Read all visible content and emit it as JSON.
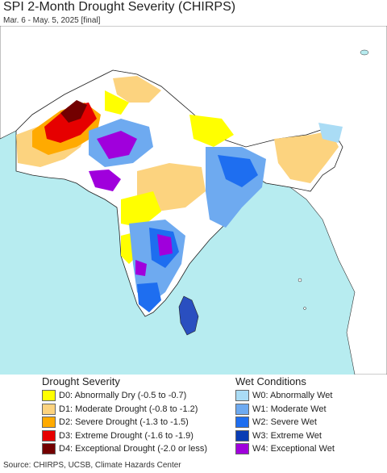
{
  "title": "SPI 2-Month Drought Severity (CHIRPS)",
  "subtitle": "Mar. 6 - May. 5, 2025 [final]",
  "drought_legend": {
    "heading": "Drought Severity",
    "items": [
      {
        "label": "D0: Abnormally Dry (-0.5 to -0.7)",
        "color": "#ffff00"
      },
      {
        "label": "D1: Moderate Drought (-0.8 to -1.2)",
        "color": "#fcd37f"
      },
      {
        "label": "D2: Severe Drought (-1.3 to -1.5)",
        "color": "#ffaa00"
      },
      {
        "label": "D3: Extreme Drought (-1.6 to -1.9)",
        "color": "#e60000"
      },
      {
        "label": "D4: Exceptional Drought (-2.0 or less)",
        "color": "#730000"
      }
    ]
  },
  "wet_legend": {
    "heading": "Wet Conditions",
    "items": [
      {
        "label": "W0: Abnormally Wet",
        "color": "#aadcf5"
      },
      {
        "label": "W1: Moderate Wet",
        "color": "#6eaaf0"
      },
      {
        "label": "W2: Severe Wet",
        "color": "#1e6ef0"
      },
      {
        "label": "W3: Extreme Wet",
        "color": "#0a3cb4"
      },
      {
        "label": "W4: Exceptional Wet",
        "color": "#a000dc"
      }
    ]
  },
  "source": "Source: CHIRPS, UCSB, Climate Hazards Center",
  "colors": {
    "sea": "#b7ecf0",
    "land": "#ffffff",
    "outside_land": "#f2f2f2",
    "border": "#222222"
  }
}
